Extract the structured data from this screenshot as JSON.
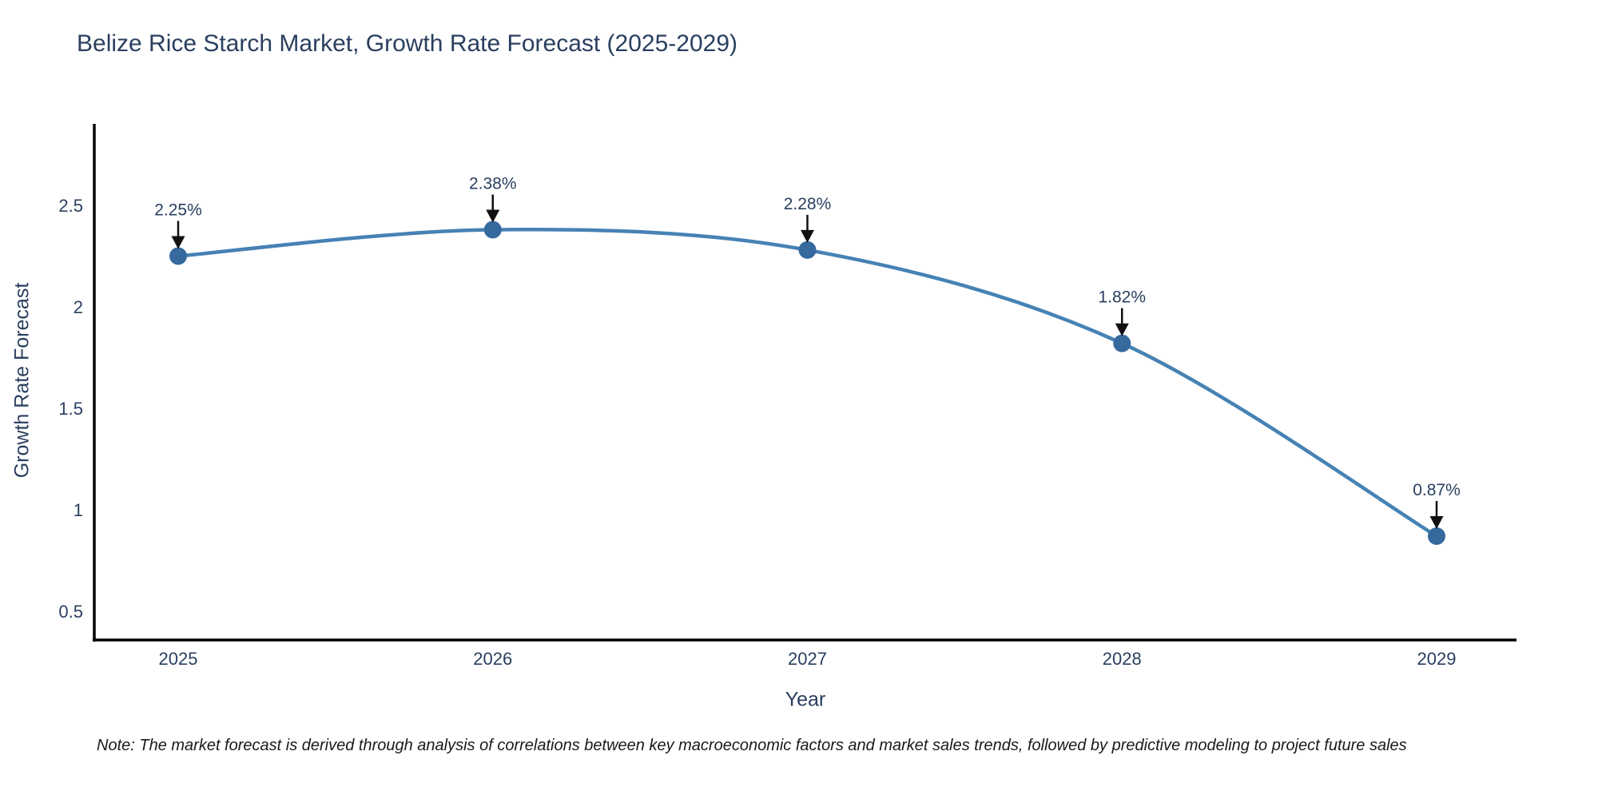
{
  "header": {
    "title": "Belize Rice Starch Market, Growth Rate Forecast (2025-2029)"
  },
  "footnote": "Note: The market forecast is derived through analysis of correlations between key macroeconomic factors and market sales trends, followed by predictive modeling to project future sales",
  "chart_data": {
    "type": "line",
    "title": "Belize Rice Starch Market, Growth Rate Forecast (2025-2029)",
    "xlabel": "Year",
    "ylabel": "Growth Rate Forecast",
    "categories": [
      "2025",
      "2026",
      "2027",
      "2028",
      "2029"
    ],
    "values": [
      2.25,
      2.38,
      2.28,
      1.82,
      0.87
    ],
    "point_labels": [
      "2.25%",
      "2.38%",
      "2.28%",
      "1.82%",
      "0.87%"
    ],
    "yticks": [
      0.5,
      1,
      1.5,
      2,
      2.5
    ],
    "ylim": [
      0.36,
      2.92
    ],
    "line_shape": "spline",
    "grid": false,
    "legend_position": "none",
    "annotations_have_arrows": true,
    "colors": {
      "line": "#4682b4",
      "marker": "#36699e",
      "axis": "#000000",
      "text": "#2a3f5f",
      "arrow": "#111111",
      "background": "#ffffff"
    }
  }
}
